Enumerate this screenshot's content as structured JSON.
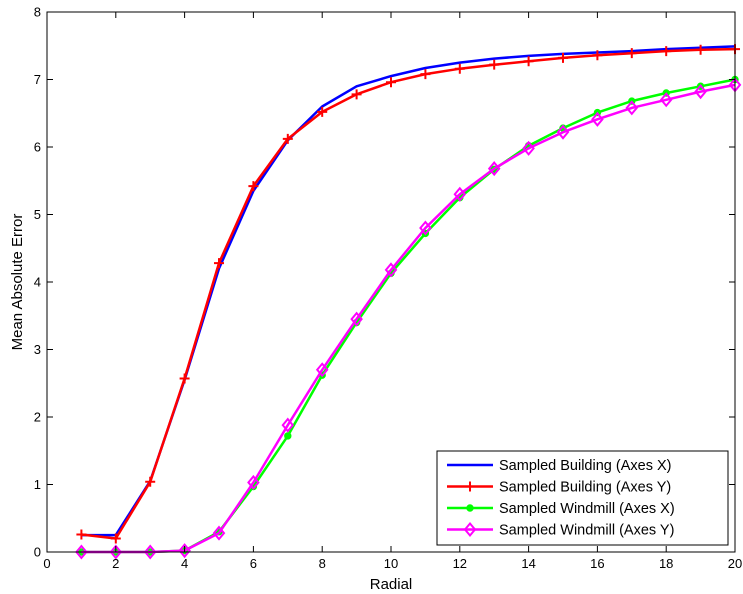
{
  "chart_data": {
    "type": "line",
    "xlabel": "Radial",
    "ylabel": "Mean Absolute Error",
    "xlim": [
      0,
      20
    ],
    "ylim": [
      0,
      8
    ],
    "xticks": [
      0,
      2,
      4,
      6,
      8,
      10,
      12,
      14,
      16,
      18,
      20
    ],
    "yticks": [
      0,
      1,
      2,
      3,
      4,
      5,
      6,
      7,
      8
    ],
    "grid": false,
    "legend_position": "bottom-right",
    "series": [
      {
        "name": "Sampled Building (Axes X)",
        "color": "#0000ff",
        "marker": "none",
        "x": [
          1,
          2,
          3,
          4,
          5,
          6,
          7,
          8,
          9,
          10,
          11,
          12,
          13,
          14,
          15,
          16,
          17,
          18,
          19,
          20
        ],
        "values": [
          0.25,
          0.25,
          1.05,
          2.55,
          4.2,
          5.35,
          6.1,
          6.6,
          6.9,
          7.05,
          7.17,
          7.25,
          7.31,
          7.35,
          7.38,
          7.4,
          7.42,
          7.45,
          7.47,
          7.49
        ]
      },
      {
        "name": "Sampled Building (Axes Y)",
        "color": "#ff0000",
        "marker": "plus",
        "x": [
          1,
          2,
          3,
          4,
          5,
          6,
          7,
          8,
          9,
          10,
          11,
          12,
          13,
          14,
          15,
          16,
          17,
          18,
          19,
          20
        ],
        "values": [
          0.26,
          0.2,
          1.04,
          2.57,
          4.28,
          5.42,
          6.12,
          6.52,
          6.78,
          6.96,
          7.08,
          7.16,
          7.22,
          7.27,
          7.32,
          7.36,
          7.39,
          7.42,
          7.44,
          7.45
        ]
      },
      {
        "name": "Sampled Windmill (Axes X)",
        "color": "#00ff00",
        "marker": "dot",
        "x": [
          1,
          2,
          3,
          4,
          5,
          6,
          7,
          8,
          9,
          10,
          11,
          12,
          13,
          14,
          15,
          16,
          17,
          18,
          19,
          20
        ],
        "values": [
          0.0,
          0.0,
          0.0,
          0.02,
          0.3,
          0.97,
          1.72,
          2.62,
          3.4,
          4.13,
          4.72,
          5.25,
          5.67,
          6.02,
          6.28,
          6.51,
          6.68,
          6.8,
          6.9,
          7.0
        ]
      },
      {
        "name": "Sampled Windmill (Axes Y)",
        "color": "#ff00ff",
        "marker": "diamond",
        "x": [
          1,
          2,
          3,
          4,
          5,
          6,
          7,
          8,
          9,
          10,
          11,
          12,
          13,
          14,
          15,
          16,
          17,
          18,
          19,
          20
        ],
        "values": [
          0.0,
          0.0,
          0.0,
          0.02,
          0.28,
          1.03,
          1.88,
          2.7,
          3.45,
          4.18,
          4.8,
          5.3,
          5.68,
          5.98,
          6.22,
          6.41,
          6.58,
          6.7,
          6.82,
          6.92
        ]
      }
    ]
  }
}
